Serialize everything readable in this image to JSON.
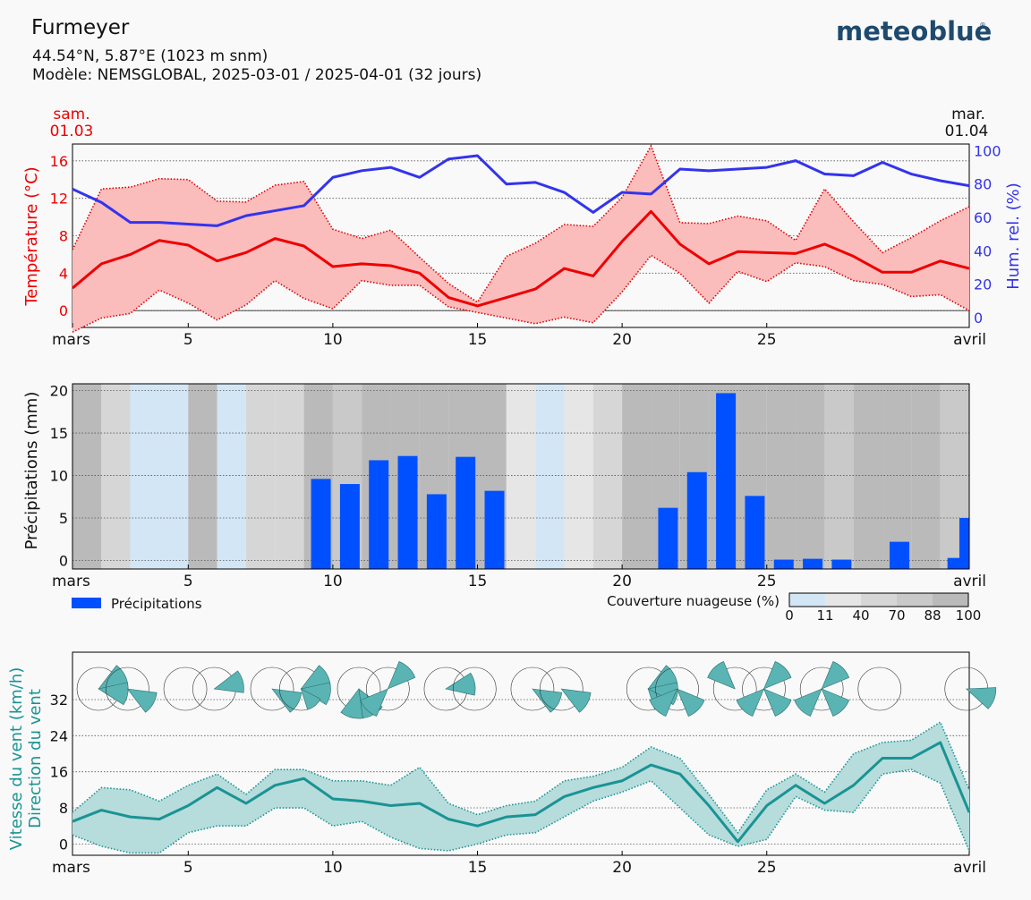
{
  "header": {
    "location": "Furmeyer",
    "coords": "44.54°N, 5.87°E (1023 m snm)",
    "model": "Modèle: NEMSGLOBAL, 2025-03-01 / 2025-04-01 (32 jours)",
    "brand": "meteoblue",
    "brand_mark": "®"
  },
  "date_labels": {
    "start_day": "sam.",
    "start_date": "01.03",
    "end_day": "mar.",
    "end_date": "01.04"
  },
  "x_ticks": [
    {
      "day": 1,
      "label": "mars"
    },
    {
      "day": 5,
      "label": "5"
    },
    {
      "day": 10,
      "label": "10"
    },
    {
      "day": 15,
      "label": "15"
    },
    {
      "day": 20,
      "label": "20"
    },
    {
      "day": 25,
      "label": "25"
    },
    {
      "day": 32,
      "label": "avril"
    }
  ],
  "colors": {
    "temp": "#ee0000",
    "temp_fill": "#fbbcbc",
    "humidity": "#3333ee",
    "precip": "#0050ff",
    "wind": "#1a9393",
    "wind_fill": "#b6dcdc",
    "wind_rose": "#5ab4b4",
    "cloud_0": "#d2e6f5",
    "cloud_11": "#e6e6e6",
    "cloud_40": "#d6d6d6",
    "cloud_70": "#c9c9c9",
    "cloud_88": "#bababa"
  },
  "chart_data": [
    {
      "type": "line",
      "name": "temperature",
      "ylabel": "Température (°C)",
      "ylim": [
        -1.8,
        17.8
      ],
      "yticks": [
        0,
        4,
        8,
        12,
        16
      ],
      "grid": true,
      "x": [
        1,
        2,
        3,
        4,
        5,
        6,
        7,
        8,
        9,
        10,
        11,
        12,
        13,
        14,
        15,
        16,
        17,
        18,
        19,
        20,
        21,
        22,
        23,
        24,
        25,
        26,
        27,
        28,
        29,
        30,
        31,
        32
      ],
      "series": [
        {
          "role": "max",
          "values": [
            6.5,
            13,
            13.2,
            14.1,
            14,
            11.7,
            11.6,
            13.4,
            13.8,
            8.7,
            7.7,
            8.6,
            5.7,
            2.9,
            0.9,
            5.8,
            7.2,
            9.2,
            9,
            12.1,
            17.6,
            9.4,
            9.3,
            10.1,
            9.6,
            7.5,
            13,
            9.5,
            6.2,
            7.8,
            9.6,
            11.1
          ]
        },
        {
          "role": "mean",
          "values": [
            2.4,
            5,
            6,
            7.5,
            7,
            5.3,
            6.2,
            7.7,
            6.9,
            4.7,
            5,
            4.8,
            4,
            1.4,
            0.5,
            1.4,
            2.3,
            4.5,
            3.7,
            7.4,
            10.6,
            7.1,
            5,
            6.3,
            6.2,
            6.1,
            7.1,
            5.8,
            4.1,
            4.1,
            5.3,
            4.5
          ]
        },
        {
          "role": "min",
          "values": [
            -2.3,
            -0.8,
            -0.3,
            2.2,
            0.8,
            -1,
            0.6,
            3.2,
            1.3,
            0.2,
            3.2,
            2.7,
            2.7,
            0.4,
            -0.2,
            -0.8,
            -1.4,
            -0.7,
            -1.3,
            2,
            5.9,
            4,
            0.8,
            4.2,
            3.1,
            5.1,
            4.7,
            3.2,
            2.8,
            1.5,
            1.7,
            0
          ]
        }
      ]
    },
    {
      "type": "line",
      "name": "humidity",
      "ylabel": "Hum. rel. (%)",
      "ylim": [
        -6,
        104
      ],
      "yticks": [
        0,
        20,
        40,
        60,
        80,
        100
      ],
      "x": [
        1,
        2,
        3,
        4,
        5,
        6,
        7,
        8,
        9,
        10,
        11,
        12,
        13,
        14,
        15,
        16,
        17,
        18,
        19,
        20,
        21,
        22,
        23,
        24,
        25,
        26,
        27,
        28,
        29,
        30,
        31,
        32
      ],
      "series": [
        {
          "values": [
            77,
            69,
            57,
            57,
            56,
            55,
            61,
            64,
            67,
            84,
            88,
            90,
            84,
            95,
            97,
            80,
            81,
            75,
            63,
            75,
            74,
            89,
            88,
            89,
            90,
            94,
            86,
            85,
            93,
            86,
            82,
            79
          ]
        }
      ]
    },
    {
      "type": "bar",
      "name": "precipitation",
      "ylabel": "Précipitations (mm)",
      "legend": "Précipitations",
      "ylim": [
        -1,
        20.8
      ],
      "yticks": [
        0,
        5,
        10,
        15,
        20
      ],
      "grid": true,
      "x": [
        1,
        2,
        3,
        4,
        5,
        6,
        7,
        8,
        9,
        10,
        11,
        12,
        13,
        14,
        15,
        16,
        17,
        18,
        19,
        20,
        21,
        22,
        23,
        24,
        25,
        26,
        27,
        28,
        29,
        30,
        31,
        32
      ],
      "values": [
        0,
        0,
        0,
        0,
        0,
        0,
        0,
        0,
        9.6,
        9,
        11.8,
        12.3,
        7.8,
        12.2,
        8.2,
        0,
        0,
        0,
        0,
        0,
        6.2,
        10.4,
        19.7,
        7.6,
        0.1,
        0.2,
        0.1,
        0,
        2.2,
        0,
        0.3,
        5
      ]
    },
    {
      "type": "heatmap",
      "name": "cloud_cover",
      "legend_title": "Couverture nuageuse (%)",
      "legend_ticks": [
        "0",
        "11",
        "40",
        "70",
        "88",
        "100"
      ],
      "x": [
        1,
        2,
        3,
        4,
        5,
        6,
        7,
        8,
        9,
        10,
        11,
        12,
        13,
        14,
        15,
        16,
        17,
        18,
        19,
        20,
        21,
        22,
        23,
        24,
        25,
        26,
        27,
        28,
        29,
        30,
        31,
        32
      ],
      "values": [
        90,
        45,
        5,
        5,
        90,
        8,
        40,
        60,
        88,
        80,
        88,
        90,
        90,
        90,
        90,
        20,
        5,
        20,
        60,
        90,
        90,
        90,
        90,
        90,
        90,
        90,
        70,
        90,
        90,
        90,
        70,
        60
      ]
    },
    {
      "type": "line",
      "name": "wind_speed",
      "ylabel": "Vitesse du vent (km/h)",
      "ylabel2": "Direction du vent",
      "ylim": [
        -2.5,
        42.5
      ],
      "yticks": [
        0,
        8,
        16,
        24,
        32
      ],
      "grid": true,
      "x": [
        1,
        2,
        3,
        4,
        5,
        6,
        7,
        8,
        9,
        10,
        11,
        12,
        13,
        14,
        15,
        16,
        17,
        18,
        19,
        20,
        21,
        22,
        23,
        24,
        25,
        26,
        27,
        28,
        29,
        30,
        31,
        32
      ],
      "series": [
        {
          "role": "max",
          "values": [
            7,
            12.5,
            12,
            9.5,
            13,
            15.5,
            11,
            16.5,
            16.5,
            14,
            14,
            13,
            17,
            9,
            6.5,
            8.5,
            9.5,
            14,
            15,
            17,
            21.5,
            19,
            11,
            2.5,
            12,
            15.5,
            11.5,
            20,
            22.5,
            23,
            27,
            12
          ]
        },
        {
          "role": "mean",
          "values": [
            5,
            7.5,
            6,
            5.5,
            8.5,
            12.5,
            9,
            13,
            14.5,
            10,
            9.5,
            8.5,
            9,
            5.5,
            4,
            6,
            6.5,
            10.5,
            12.5,
            14,
            17.5,
            15.5,
            8.5,
            0.5,
            8.5,
            13,
            9,
            13,
            19,
            19,
            22.5,
            7
          ]
        },
        {
          "role": "min",
          "values": [
            2,
            -0.5,
            -2,
            -2,
            2.5,
            4,
            4,
            8,
            8,
            4,
            5,
            1.5,
            -1,
            -1.5,
            0,
            2,
            2.5,
            6,
            9.5,
            11.5,
            14,
            8,
            2,
            -0.5,
            1,
            10.5,
            7.5,
            7,
            15.5,
            16.5,
            13.5,
            -1.5
          ]
        }
      ]
    },
    {
      "type": "wind_rose",
      "name": "wind_direction",
      "x": [
        1,
        2,
        3,
        4,
        5,
        6,
        7,
        8,
        9,
        10,
        11,
        12,
        13,
        14,
        15,
        16,
        17,
        18,
        19,
        20,
        21,
        22,
        23,
        24,
        25,
        26,
        27,
        28,
        29,
        30,
        31,
        32
      ],
      "sectors": [
        [
          {
            "dir": 60,
            "frac": 0.95
          },
          {
            "dir": 100,
            "frac": 0.95
          }
        ],
        [
          {
            "dir": 120,
            "frac": 0.95
          }
        ],
        [],
        [
          {
            "dir": 75,
            "frac": 0.95
          }
        ],
        [
          {
            "dir": 120,
            "frac": 0.95
          }
        ],
        [
          {
            "dir": 60,
            "frac": 0.95
          },
          {
            "dir": 100,
            "frac": 0.95
          },
          {
            "dir": 140,
            "frac": 0.7
          }
        ],
        [
          {
            "dir": 150,
            "frac": 0.95
          },
          {
            "dir": 195,
            "frac": 0.95
          }
        ],
        [
          {
            "dir": 45,
            "frac": 0.95
          },
          {
            "dir": 225,
            "frac": 0.95
          }
        ],
        [
          {
            "dir": 80,
            "frac": 0.95
          }
        ],
        [],
        [
          {
            "dir": 120,
            "frac": 0.95
          }
        ],
        [
          {
            "dir": 120,
            "frac": 0.95
          }
        ],
        [
          {
            "dir": 60,
            "frac": 0.95
          },
          {
            "dir": 100,
            "frac": 0.95
          },
          {
            "dir": 140,
            "frac": 0.7
          }
        ],
        [
          {
            "dir": 135,
            "frac": 0.95
          },
          {
            "dir": 225,
            "frac": 0.95
          }
        ],
        [
          {
            "dir": 315,
            "frac": 0.95
          }
        ],
        [
          {
            "dir": 45,
            "frac": 0.95
          },
          {
            "dir": 135,
            "frac": 0.95
          },
          {
            "dir": 225,
            "frac": 0.95
          }
        ],
        [
          {
            "dir": 45,
            "frac": 0.95
          },
          {
            "dir": 135,
            "frac": 0.95
          },
          {
            "dir": 225,
            "frac": 0.95
          }
        ],
        [],
        [
          {
            "dir": 110,
            "frac": 0.95
          }
        ]
      ],
      "rose_days": [
        1.9,
        2.9,
        4.9,
        5.9,
        7.9,
        8.9,
        10.9,
        11.9,
        13.9,
        14.9,
        16.9,
        17.9,
        20.9,
        21.9,
        23.9,
        24.9,
        26.9,
        28.9,
        31.9
      ]
    }
  ]
}
